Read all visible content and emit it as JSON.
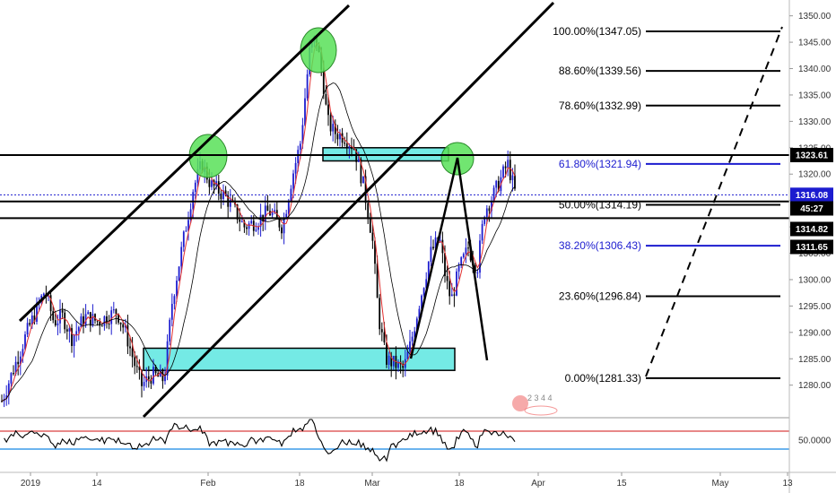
{
  "chart_data": {
    "type": "candlestick",
    "price_axis": {
      "ylim": [
        1274,
        1353
      ],
      "ticks": [
        1280,
        1285,
        1290,
        1295,
        1300,
        1305,
        1310,
        1315,
        1320,
        1325,
        1330,
        1335,
        1340,
        1345,
        1350
      ],
      "tick_labels": [
        "1280.00",
        "1285.00",
        "1290.00",
        "1295.00",
        "1300.00",
        "1305.00",
        "1310.00",
        "1315.00",
        "1320.00",
        "1325.00",
        "1330.00",
        "1335.00",
        "1340.00",
        "1345.00",
        "1350.00"
      ]
    },
    "x_axis": {
      "labels": [
        "2019",
        "14",
        "Feb",
        "18",
        "Mar",
        "18",
        "Apr",
        "15",
        "May",
        "13"
      ]
    },
    "fibonacci": [
      {
        "label": "100.00%(1347.05)",
        "price": 1347.05,
        "color": "#000000"
      },
      {
        "label": "88.60%(1339.56)",
        "price": 1339.56,
        "color": "#000000"
      },
      {
        "label": "78.60%(1332.99)",
        "price": 1332.99,
        "color": "#000000"
      },
      {
        "label": "61.80%(1321.94)",
        "price": 1321.94,
        "color": "#1c1ccf"
      },
      {
        "label": "50.00%(1314.19)",
        "price": 1314.19,
        "color": "#000000"
      },
      {
        "label": "38.20%(1306.43)",
        "price": 1306.43,
        "color": "#1c1ccf"
      },
      {
        "label": "23.60%(1296.84)",
        "price": 1296.84,
        "color": "#000000"
      },
      {
        "label": "0.00%(1281.33)",
        "price": 1281.33,
        "color": "#000000"
      }
    ],
    "horizontal_levels": [
      1323.61,
      1314.82,
      1311.65
    ],
    "price_badges": [
      {
        "text": "1323.61",
        "price": 1323.61,
        "bg": "#000000"
      },
      {
        "text": "1316.08",
        "price": 1316.08,
        "bg": "#1c1ccf"
      },
      {
        "text": "45:27",
        "price": 1313.5,
        "bg": "#000000"
      },
      {
        "text": "1314.82",
        "price": 1309.6,
        "bg": "#000000"
      },
      {
        "text": "1311.65",
        "price": 1306.2,
        "bg": "#000000"
      }
    ],
    "current_price": 1316.08,
    "oscillator": {
      "upper_level": 70,
      "lower_level": 30,
      "tick_label": "50.0000",
      "colors": {
        "upper": "#e06060",
        "lower": "#3c9be8",
        "line": "#000000"
      }
    },
    "highlight_zones": [
      {
        "name": "resistance-zone",
        "price_low": 1322.5,
        "price_high": 1325.0
      },
      {
        "name": "support-zone",
        "price_low": 1282.8,
        "price_high": 1287.0
      }
    ],
    "watermark_digits": "2 3 4 4",
    "colors": {
      "up_candle": "#1c1ccf",
      "down_candle": "#000000",
      "ma_fast": "#e03030",
      "ma_slow": "#000000",
      "zone_fill": "#5ce6e0",
      "circle_fill": "#58e058"
    }
  }
}
